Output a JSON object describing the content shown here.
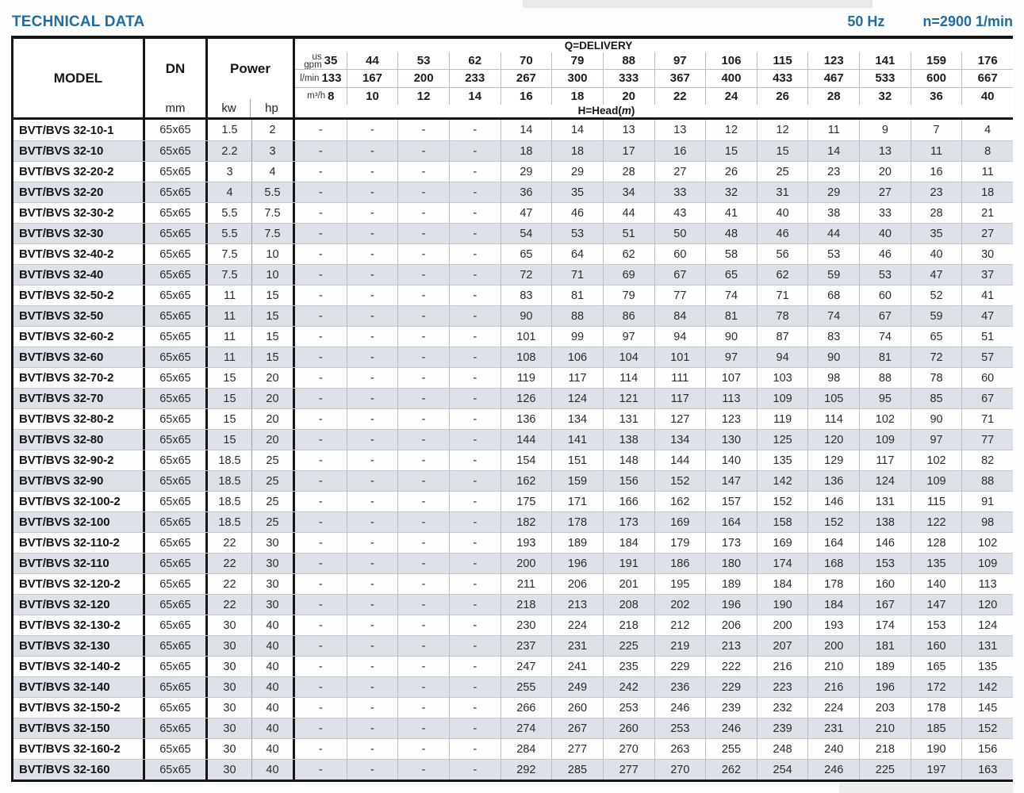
{
  "page": {
    "title": "TECHNICAL DATA",
    "frequency": "50 Hz",
    "speed": "n=2900 1/min"
  },
  "table": {
    "col_headers": {
      "model": "MODEL",
      "dn": "DN",
      "dn_unit": "mm",
      "power": "Power",
      "power_unit_kw": "kw",
      "power_unit_hp": "hp"
    },
    "delivery": {
      "title": "Q=DELIVERY",
      "head_prefix": "H=Head(",
      "head_m": "m",
      "head_suffix": ")",
      "rows": [
        {
          "unit_lines": [
            "us",
            "gpm"
          ],
          "values": [
            "35",
            "44",
            "53",
            "62",
            "70",
            "79",
            "88",
            "97",
            "106",
            "115",
            "123",
            "141",
            "159",
            "176"
          ]
        },
        {
          "unit_lines": [
            "l/min"
          ],
          "values": [
            "133",
            "167",
            "200",
            "233",
            "267",
            "300",
            "333",
            "367",
            "400",
            "433",
            "467",
            "533",
            "600",
            "667"
          ]
        },
        {
          "unit_lines": [
            "m³/h"
          ],
          "values": [
            "8",
            "10",
            "12",
            "14",
            "16",
            "18",
            "20",
            "22",
            "24",
            "26",
            "28",
            "32",
            "36",
            "40"
          ]
        }
      ]
    },
    "rows": [
      {
        "model": "BVT/BVS 32-10-1",
        "dn": "65x65",
        "kw": "1.5",
        "hp": "2",
        "head": [
          "-",
          "-",
          "-",
          "-",
          "14",
          "14",
          "13",
          "13",
          "12",
          "12",
          "11",
          "9",
          "7",
          "4"
        ]
      },
      {
        "model": "BVT/BVS 32-10",
        "dn": "65x65",
        "kw": "2.2",
        "hp": "3",
        "head": [
          "-",
          "-",
          "-",
          "-",
          "18",
          "18",
          "17",
          "16",
          "15",
          "15",
          "14",
          "13",
          "11",
          "8"
        ]
      },
      {
        "model": "BVT/BVS 32-20-2",
        "dn": "65x65",
        "kw": "3",
        "hp": "4",
        "head": [
          "-",
          "-",
          "-",
          "-",
          "29",
          "29",
          "28",
          "27",
          "26",
          "25",
          "23",
          "20",
          "16",
          "11"
        ]
      },
      {
        "model": "BVT/BVS 32-20",
        "dn": "65x65",
        "kw": "4",
        "hp": "5.5",
        "head": [
          "-",
          "-",
          "-",
          "-",
          "36",
          "35",
          "34",
          "33",
          "32",
          "31",
          "29",
          "27",
          "23",
          "18"
        ]
      },
      {
        "model": "BVT/BVS 32-30-2",
        "dn": "65x65",
        "kw": "5.5",
        "hp": "7.5",
        "head": [
          "-",
          "-",
          "-",
          "-",
          "47",
          "46",
          "44",
          "43",
          "41",
          "40",
          "38",
          "33",
          "28",
          "21"
        ]
      },
      {
        "model": "BVT/BVS 32-30",
        "dn": "65x65",
        "kw": "5.5",
        "hp": "7.5",
        "head": [
          "-",
          "-",
          "-",
          "-",
          "54",
          "53",
          "51",
          "50",
          "48",
          "46",
          "44",
          "40",
          "35",
          "27"
        ]
      },
      {
        "model": "BVT/BVS 32-40-2",
        "dn": "65x65",
        "kw": "7.5",
        "hp": "10",
        "head": [
          "-",
          "-",
          "-",
          "-",
          "65",
          "64",
          "62",
          "60",
          "58",
          "56",
          "53",
          "46",
          "40",
          "30"
        ]
      },
      {
        "model": "BVT/BVS 32-40",
        "dn": "65x65",
        "kw": "7.5",
        "hp": "10",
        "head": [
          "-",
          "-",
          "-",
          "-",
          "72",
          "71",
          "69",
          "67",
          "65",
          "62",
          "59",
          "53",
          "47",
          "37"
        ]
      },
      {
        "model": "BVT/BVS 32-50-2",
        "dn": "65x65",
        "kw": "11",
        "hp": "15",
        "head": [
          "-",
          "-",
          "-",
          "-",
          "83",
          "81",
          "79",
          "77",
          "74",
          "71",
          "68",
          "60",
          "52",
          "41"
        ]
      },
      {
        "model": "BVT/BVS 32-50",
        "dn": "65x65",
        "kw": "11",
        "hp": "15",
        "head": [
          "-",
          "-",
          "-",
          "-",
          "90",
          "88",
          "86",
          "84",
          "81",
          "78",
          "74",
          "67",
          "59",
          "47"
        ]
      },
      {
        "model": "BVT/BVS 32-60-2",
        "dn": "65x65",
        "kw": "11",
        "hp": "15",
        "head": [
          "-",
          "-",
          "-",
          "-",
          "101",
          "99",
          "97",
          "94",
          "90",
          "87",
          "83",
          "74",
          "65",
          "51"
        ]
      },
      {
        "model": "BVT/BVS 32-60",
        "dn": "65x65",
        "kw": "11",
        "hp": "15",
        "head": [
          "-",
          "-",
          "-",
          "-",
          "108",
          "106",
          "104",
          "101",
          "97",
          "94",
          "90",
          "81",
          "72",
          "57"
        ]
      },
      {
        "model": "BVT/BVS 32-70-2",
        "dn": "65x65",
        "kw": "15",
        "hp": "20",
        "head": [
          "-",
          "-",
          "-",
          "-",
          "119",
          "117",
          "114",
          "111",
          "107",
          "103",
          "98",
          "88",
          "78",
          "60"
        ]
      },
      {
        "model": "BVT/BVS 32-70",
        "dn": "65x65",
        "kw": "15",
        "hp": "20",
        "head": [
          "-",
          "-",
          "-",
          "-",
          "126",
          "124",
          "121",
          "117",
          "113",
          "109",
          "105",
          "95",
          "85",
          "67"
        ]
      },
      {
        "model": "BVT/BVS 32-80-2",
        "dn": "65x65",
        "kw": "15",
        "hp": "20",
        "head": [
          "-",
          "-",
          "-",
          "-",
          "136",
          "134",
          "131",
          "127",
          "123",
          "119",
          "114",
          "102",
          "90",
          "71"
        ]
      },
      {
        "model": "BVT/BVS 32-80",
        "dn": "65x65",
        "kw": "15",
        "hp": "20",
        "head": [
          "-",
          "-",
          "-",
          "-",
          "144",
          "141",
          "138",
          "134",
          "130",
          "125",
          "120",
          "109",
          "97",
          "77"
        ]
      },
      {
        "model": "BVT/BVS 32-90-2",
        "dn": "65x65",
        "kw": "18.5",
        "hp": "25",
        "head": [
          "-",
          "-",
          "-",
          "-",
          "154",
          "151",
          "148",
          "144",
          "140",
          "135",
          "129",
          "117",
          "102",
          "82"
        ]
      },
      {
        "model": "BVT/BVS 32-90",
        "dn": "65x65",
        "kw": "18.5",
        "hp": "25",
        "head": [
          "-",
          "-",
          "-",
          "-",
          "162",
          "159",
          "156",
          "152",
          "147",
          "142",
          "136",
          "124",
          "109",
          "88"
        ]
      },
      {
        "model": "BVT/BVS 32-100-2",
        "dn": "65x65",
        "kw": "18.5",
        "hp": "25",
        "head": [
          "-",
          "-",
          "-",
          "-",
          "175",
          "171",
          "166",
          "162",
          "157",
          "152",
          "146",
          "131",
          "115",
          "91"
        ]
      },
      {
        "model": "BVT/BVS 32-100",
        "dn": "65x65",
        "kw": "18.5",
        "hp": "25",
        "head": [
          "-",
          "-",
          "-",
          "-",
          "182",
          "178",
          "173",
          "169",
          "164",
          "158",
          "152",
          "138",
          "122",
          "98"
        ]
      },
      {
        "model": "BVT/BVS 32-110-2",
        "dn": "65x65",
        "kw": "22",
        "hp": "30",
        "head": [
          "-",
          "-",
          "-",
          "-",
          "193",
          "189",
          "184",
          "179",
          "173",
          "169",
          "164",
          "146",
          "128",
          "102"
        ]
      },
      {
        "model": "BVT/BVS 32-110",
        "dn": "65x65",
        "kw": "22",
        "hp": "30",
        "head": [
          "-",
          "-",
          "-",
          "-",
          "200",
          "196",
          "191",
          "186",
          "180",
          "174",
          "168",
          "153",
          "135",
          "109"
        ]
      },
      {
        "model": "BVT/BVS 32-120-2",
        "dn": "65x65",
        "kw": "22",
        "hp": "30",
        "head": [
          "-",
          "-",
          "-",
          "-",
          "211",
          "206",
          "201",
          "195",
          "189",
          "184",
          "178",
          "160",
          "140",
          "113"
        ]
      },
      {
        "model": "BVT/BVS 32-120",
        "dn": "65x65",
        "kw": "22",
        "hp": "30",
        "head": [
          "-",
          "-",
          "-",
          "-",
          "218",
          "213",
          "208",
          "202",
          "196",
          "190",
          "184",
          "167",
          "147",
          "120"
        ]
      },
      {
        "model": "BVT/BVS 32-130-2",
        "dn": "65x65",
        "kw": "30",
        "hp": "40",
        "head": [
          "-",
          "-",
          "-",
          "-",
          "230",
          "224",
          "218",
          "212",
          "206",
          "200",
          "193",
          "174",
          "153",
          "124"
        ]
      },
      {
        "model": "BVT/BVS 32-130",
        "dn": "65x65",
        "kw": "30",
        "hp": "40",
        "head": [
          "-",
          "-",
          "-",
          "-",
          "237",
          "231",
          "225",
          "219",
          "213",
          "207",
          "200",
          "181",
          "160",
          "131"
        ]
      },
      {
        "model": "BVT/BVS 32-140-2",
        "dn": "65x65",
        "kw": "30",
        "hp": "40",
        "head": [
          "-",
          "-",
          "-",
          "-",
          "247",
          "241",
          "235",
          "229",
          "222",
          "216",
          "210",
          "189",
          "165",
          "135"
        ]
      },
      {
        "model": "BVT/BVS 32-140",
        "dn": "65x65",
        "kw": "30",
        "hp": "40",
        "head": [
          "-",
          "-",
          "-",
          "-",
          "255",
          "249",
          "242",
          "236",
          "229",
          "223",
          "216",
          "196",
          "172",
          "142"
        ]
      },
      {
        "model": "BVT/BVS 32-150-2",
        "dn": "65x65",
        "kw": "30",
        "hp": "40",
        "head": [
          "-",
          "-",
          "-",
          "-",
          "266",
          "260",
          "253",
          "246",
          "239",
          "232",
          "224",
          "203",
          "178",
          "145"
        ]
      },
      {
        "model": "BVT/BVS 32-150",
        "dn": "65x65",
        "kw": "30",
        "hp": "40",
        "head": [
          "-",
          "-",
          "-",
          "-",
          "274",
          "267",
          "260",
          "253",
          "246",
          "239",
          "231",
          "210",
          "185",
          "152"
        ]
      },
      {
        "model": "BVT/BVS 32-160-2",
        "dn": "65x65",
        "kw": "30",
        "hp": "40",
        "head": [
          "-",
          "-",
          "-",
          "-",
          "284",
          "277",
          "270",
          "263",
          "255",
          "248",
          "240",
          "218",
          "190",
          "156"
        ]
      },
      {
        "model": "BVT/BVS 32-160",
        "dn": "65x65",
        "kw": "30",
        "hp": "40",
        "head": [
          "-",
          "-",
          "-",
          "-",
          "292",
          "285",
          "277",
          "270",
          "262",
          "254",
          "246",
          "225",
          "197",
          "163"
        ]
      }
    ],
    "colors": {
      "accent_blue": "#1e6ca5",
      "row_stripe": "#dce2e7",
      "border_dark": "#161616"
    }
  }
}
